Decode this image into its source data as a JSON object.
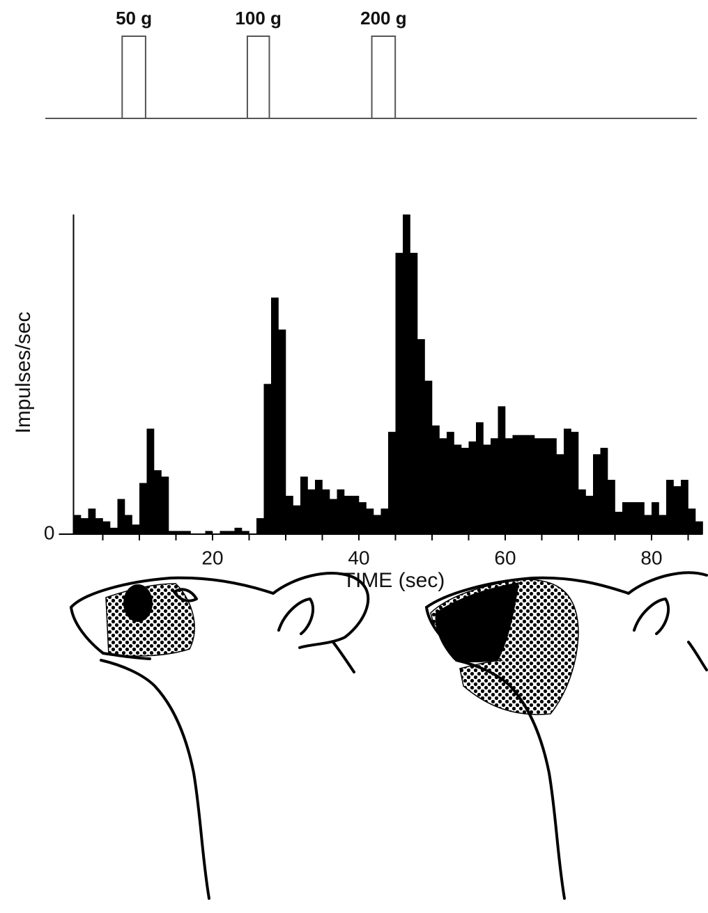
{
  "chart_data": [
    {
      "type": "stimulus",
      "xlim": [
        -2.9,
        86.1
      ],
      "events": [
        {
          "label": "50 g",
          "start": 7.6,
          "end": 10.8
        },
        {
          "label": "100 g",
          "start": 24.7,
          "end": 27.7
        },
        {
          "label": "200 g",
          "start": 41.7,
          "end": 44.9
        }
      ],
      "color": "#555555"
    },
    {
      "type": "histogram",
      "y_label": "Impulses/sec",
      "x_label": "TIME (sec)",
      "bins": [
        1,
        2,
        3,
        4,
        5,
        6,
        7,
        8,
        9,
        10,
        11,
        12,
        13,
        14,
        15,
        16,
        17,
        18,
        19,
        20,
        21,
        22,
        23,
        24,
        25,
        26,
        27,
        28,
        29,
        30,
        31,
        32,
        33,
        34,
        35,
        36,
        37,
        38,
        39,
        40,
        41,
        42,
        43,
        44,
        45,
        46,
        47,
        48,
        49,
        50,
        51,
        52,
        53,
        54,
        55,
        56,
        57,
        58,
        59,
        60,
        61,
        62,
        63,
        64,
        65,
        66,
        67,
        68,
        69,
        70,
        71,
        72,
        73,
        74,
        75,
        76,
        77,
        78,
        79,
        80,
        81,
        82,
        83,
        84,
        85,
        86,
        87
      ],
      "values": [
        6,
        5,
        8,
        5,
        4,
        2,
        11,
        6,
        3,
        16,
        33,
        20,
        18,
        1,
        1,
        1,
        0,
        0,
        1,
        0,
        1,
        1,
        2,
        1,
        0,
        5,
        47,
        74,
        64,
        12,
        9,
        18,
        14,
        17,
        14,
        11,
        14,
        12,
        12,
        10,
        8,
        6,
        8,
        32,
        88,
        100,
        88,
        61,
        48,
        34,
        30,
        32,
        28,
        27,
        29,
        35,
        28,
        30,
        40,
        30,
        31,
        31,
        31,
        30,
        30,
        30,
        25,
        33,
        32,
        14,
        12,
        25,
        27,
        17,
        7,
        10,
        10,
        10,
        6,
        10,
        6,
        17,
        15,
        17,
        8,
        4
      ],
      "color": "#000000",
      "xlim": [
        -1,
        87
      ],
      "ylim": [
        0,
        100
      ],
      "xticks": [
        20,
        40,
        60,
        80
      ],
      "xminorticks": [
        5,
        10,
        15,
        20,
        25,
        30,
        35,
        40,
        45,
        50,
        55,
        60,
        65,
        70,
        75,
        80,
        85
      ],
      "yticks": [
        0
      ]
    }
  ]
}
